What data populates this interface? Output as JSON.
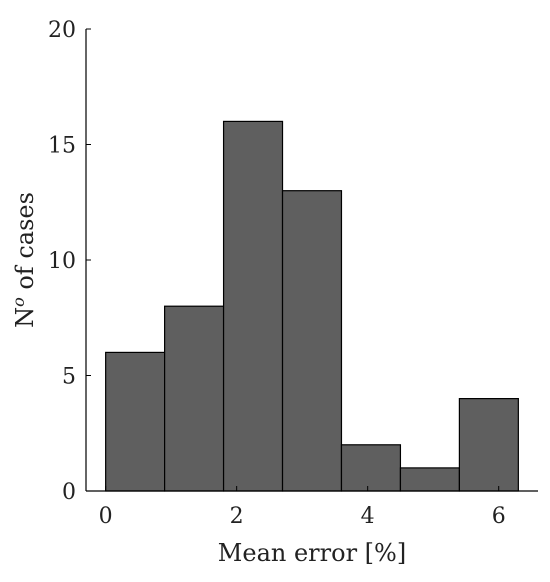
{
  "chart_data": {
    "type": "bar",
    "bins": [
      {
        "x0": 0.0,
        "x1": 0.9,
        "value": 6
      },
      {
        "x0": 0.9,
        "x1": 1.8,
        "value": 8
      },
      {
        "x0": 1.8,
        "x1": 2.7,
        "value": 16
      },
      {
        "x0": 2.7,
        "x1": 3.6,
        "value": 13
      },
      {
        "x0": 3.6,
        "x1": 4.5,
        "value": 2
      },
      {
        "x0": 4.5,
        "x1": 5.4,
        "value": 1
      },
      {
        "x0": 5.4,
        "x1": 6.3,
        "value": 4
      }
    ],
    "xlabel": "Mean error [%]",
    "ylabel": "N",
    "ylabel_superscript": "o",
    "ylabel_rest": " of cases",
    "xlim": [
      -0.3,
      6.6
    ],
    "ylim": [
      0,
      20
    ],
    "xticks": [
      0,
      2,
      4,
      6
    ],
    "yticks": [
      0,
      5,
      10,
      15,
      20
    ],
    "bar_color": "#5f5f5f",
    "edge_color": "#000000",
    "grid": false
  }
}
